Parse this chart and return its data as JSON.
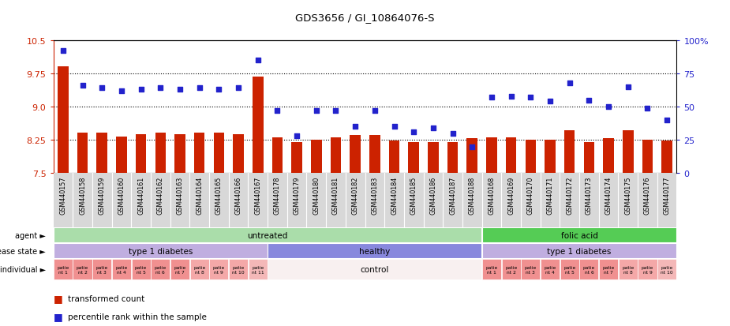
{
  "title": "GDS3656 / GI_10864076-S",
  "samples": [
    "GSM440157",
    "GSM440158",
    "GSM440159",
    "GSM440160",
    "GSM440161",
    "GSM440162",
    "GSM440163",
    "GSM440164",
    "GSM440165",
    "GSM440166",
    "GSM440167",
    "GSM440178",
    "GSM440179",
    "GSM440180",
    "GSM440181",
    "GSM440182",
    "GSM440183",
    "GSM440184",
    "GSM440185",
    "GSM440186",
    "GSM440187",
    "GSM440188",
    "GSM440168",
    "GSM440169",
    "GSM440170",
    "GSM440171",
    "GSM440172",
    "GSM440173",
    "GSM440174",
    "GSM440175",
    "GSM440176",
    "GSM440177"
  ],
  "bar_values": [
    9.9,
    8.42,
    8.42,
    8.32,
    8.38,
    8.42,
    8.38,
    8.42,
    8.42,
    8.38,
    9.68,
    8.3,
    8.2,
    8.25,
    8.3,
    8.36,
    8.36,
    8.24,
    8.2,
    8.2,
    8.2,
    8.28,
    8.3,
    8.3,
    8.25,
    8.26,
    8.46,
    8.2,
    8.28,
    8.46,
    8.25,
    8.23
  ],
  "dot_values": [
    92,
    66,
    64,
    62,
    63,
    64,
    63,
    64,
    63,
    64,
    85,
    47,
    28,
    47,
    47,
    35,
    47,
    35,
    31,
    34,
    30,
    20,
    57,
    58,
    57,
    54,
    68,
    55,
    50,
    65,
    49,
    40
  ],
  "bar_color": "#cc2200",
  "dot_color": "#2222cc",
  "ylim_left": [
    7.5,
    10.5
  ],
  "ylim_right": [
    0,
    100
  ],
  "yticks_left": [
    7.5,
    8.25,
    9.0,
    9.75,
    10.5
  ],
  "yticks_right": [
    0,
    25,
    50,
    75,
    100
  ],
  "grid_vals": [
    8.25,
    9.0,
    9.75
  ],
  "bar_bottom": 7.5,
  "agent_groups": [
    {
      "label": "untreated",
      "start": 0,
      "end": 22,
      "color": "#aaddaa"
    },
    {
      "label": "folic acid",
      "start": 22,
      "end": 32,
      "color": "#55cc55"
    }
  ],
  "disease_groups": [
    {
      "label": "type 1 diabetes",
      "start": 0,
      "end": 11,
      "color": "#c0aee0"
    },
    {
      "label": "healthy",
      "start": 11,
      "end": 22,
      "color": "#8888dd"
    },
    {
      "label": "type 1 diabetes",
      "start": 22,
      "end": 32,
      "color": "#c0aee0"
    }
  ],
  "individual_left": [
    {
      "label": "patie\nnt 1",
      "start": 0,
      "end": 1
    },
    {
      "label": "patie\nnt 2",
      "start": 1,
      "end": 2
    },
    {
      "label": "patie\nnt 3",
      "start": 2,
      "end": 3
    },
    {
      "label": "patie\nnt 4",
      "start": 3,
      "end": 4
    },
    {
      "label": "patie\nnt 5",
      "start": 4,
      "end": 5
    },
    {
      "label": "patie\nnt 6",
      "start": 5,
      "end": 6
    },
    {
      "label": "patie\nnt 7",
      "start": 6,
      "end": 7
    },
    {
      "label": "patie\nnt 8",
      "start": 7,
      "end": 8
    },
    {
      "label": "patie\nnt 9",
      "start": 8,
      "end": 9
    },
    {
      "label": "patie\nnt 10",
      "start": 9,
      "end": 10
    },
    {
      "label": "patie\nnt 11",
      "start": 10,
      "end": 11
    }
  ],
  "individual_mid": {
    "label": "control",
    "start": 11,
    "end": 22
  },
  "individual_right": [
    {
      "label": "patie\nnt 1",
      "start": 22,
      "end": 23
    },
    {
      "label": "patie\nnt 2",
      "start": 23,
      "end": 24
    },
    {
      "label": "patie\nnt 3",
      "start": 24,
      "end": 25
    },
    {
      "label": "patie\nnt 4",
      "start": 25,
      "end": 26
    },
    {
      "label": "patie\nnt 5",
      "start": 26,
      "end": 27
    },
    {
      "label": "patie\nnt 6",
      "start": 27,
      "end": 28
    },
    {
      "label": "patie\nnt 7",
      "start": 28,
      "end": 29
    },
    {
      "label": "patie\nnt 8",
      "start": 29,
      "end": 30
    },
    {
      "label": "patie\nnt 9",
      "start": 30,
      "end": 31
    },
    {
      "label": "patie\nnt 10",
      "start": 31,
      "end": 32
    }
  ],
  "patient_colors": [
    "#f09090",
    "#f09090",
    "#f09090",
    "#f09090",
    "#f09090",
    "#f09090",
    "#f09090",
    "#f4a8a8",
    "#f4a8a8",
    "#f4a8a8",
    "#f4b8b8"
  ],
  "patient_colors_right": [
    "#f09090",
    "#f09090",
    "#f09090",
    "#f09090",
    "#f09090",
    "#f09090",
    "#f09090",
    "#f4a8a8",
    "#f4a8a8",
    "#f4b8b8"
  ],
  "control_color": "#f8f0f0",
  "legend_labels": [
    "transformed count",
    "percentile rank within the sample"
  ],
  "legend_colors": [
    "#cc2200",
    "#2222cc"
  ],
  "row_labels": [
    "agent",
    "disease state",
    "individual"
  ],
  "n": 32,
  "xtick_bg_color": "#d8d8d8",
  "xtick_sep_color": "#ffffff"
}
